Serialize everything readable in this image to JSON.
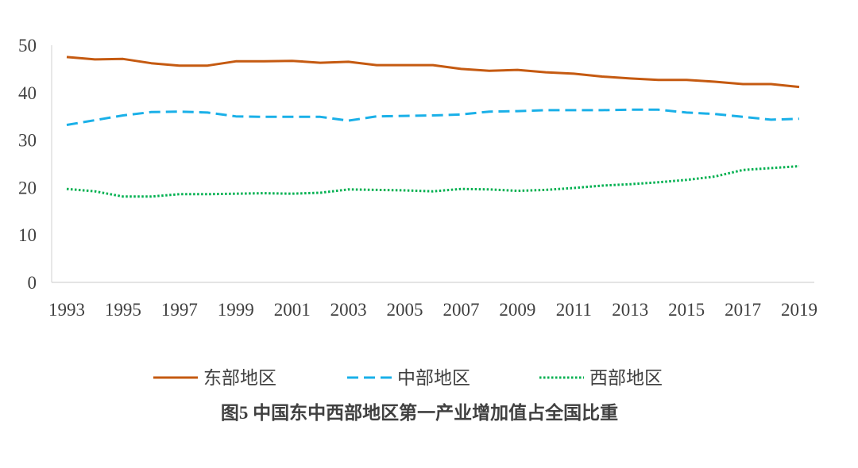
{
  "chart_data": {
    "type": "line",
    "title": "图5  中国东中西部地区第一产业增加值占全国比重",
    "xlabel": "",
    "ylabel": "",
    "x": [
      1993,
      1994,
      1995,
      1996,
      1997,
      1998,
      1999,
      2000,
      2001,
      2002,
      2003,
      2004,
      2005,
      2006,
      2007,
      2008,
      2009,
      2010,
      2011,
      2012,
      2013,
      2014,
      2015,
      2016,
      2017,
      2018,
      2019
    ],
    "x_tick_labels": [
      "1993",
      "1995",
      "1997",
      "1999",
      "2001",
      "2003",
      "2005",
      "2007",
      "2009",
      "2011",
      "2013",
      "2015",
      "2017",
      "2019"
    ],
    "ylim": [
      0,
      50
    ],
    "y_tick_labels": [
      "0",
      "10",
      "20",
      "30",
      "40",
      "50"
    ],
    "grid": false,
    "legend_position": "bottom",
    "series": [
      {
        "name": "东部地区",
        "color": "#C55A11",
        "style": "solid",
        "values": [
          47.5,
          47.0,
          47.1,
          46.2,
          45.7,
          45.7,
          46.6,
          46.6,
          46.7,
          46.3,
          46.5,
          45.8,
          45.8,
          45.8,
          45.0,
          44.6,
          44.8,
          44.3,
          44.0,
          43.4,
          43.0,
          42.7,
          42.7,
          42.3,
          41.8,
          41.8,
          41.2
        ]
      },
      {
        "name": "中部地区",
        "color": "#1AB0E8",
        "style": "dashed",
        "values": [
          33.2,
          34.2,
          35.2,
          35.9,
          36.0,
          35.8,
          35.0,
          34.9,
          34.9,
          34.9,
          34.1,
          35.0,
          35.1,
          35.2,
          35.4,
          36.0,
          36.1,
          36.3,
          36.3,
          36.3,
          36.4,
          36.4,
          35.8,
          35.5,
          34.9,
          34.3,
          34.5
        ]
      },
      {
        "name": "西部地区",
        "color": "#00B050",
        "style": "dotted",
        "values": [
          19.7,
          19.2,
          18.1,
          18.1,
          18.6,
          18.6,
          18.7,
          18.8,
          18.7,
          18.9,
          19.6,
          19.5,
          19.4,
          19.2,
          19.7,
          19.6,
          19.3,
          19.5,
          19.9,
          20.4,
          20.7,
          21.1,
          21.6,
          22.3,
          23.7,
          24.1,
          24.5
        ]
      }
    ]
  }
}
